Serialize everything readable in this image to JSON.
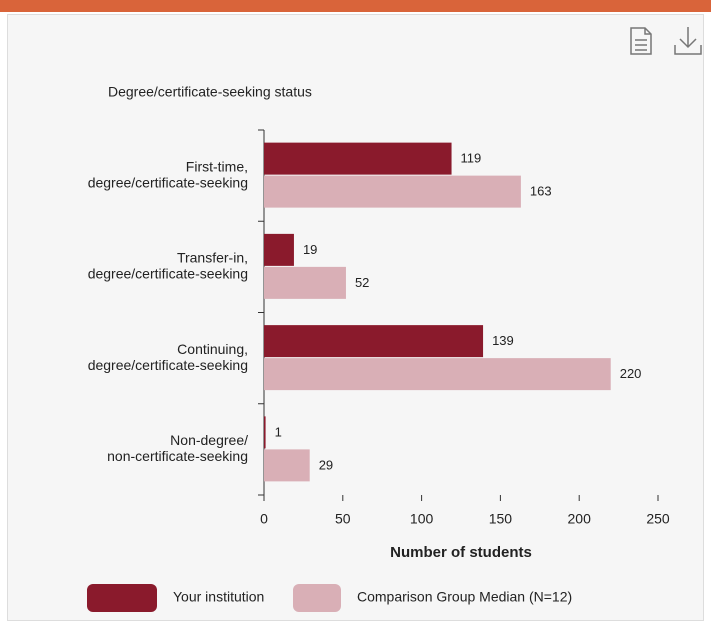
{
  "chart_data": {
    "type": "bar",
    "orientation": "horizontal",
    "title": "Degree/certificate-seeking status",
    "categories": [
      [
        "First-time,",
        "degree/certificate-seeking"
      ],
      [
        "Transfer-in,",
        "degree/certificate-seeking"
      ],
      [
        "Continuing,",
        "degree/certificate-seeking"
      ],
      [
        "Non-degree/",
        "non-certificate-seeking"
      ]
    ],
    "series": [
      {
        "name": "Your institution",
        "color": "#8a1a2c",
        "values": [
          119,
          19,
          139,
          1
        ]
      },
      {
        "name": "Comparison Group Median (N=12)",
        "color": "#d9afb6",
        "values": [
          163,
          52,
          220,
          29
        ]
      }
    ],
    "xlim": [
      0,
      250
    ],
    "xticks": [
      0,
      50,
      100,
      150,
      200,
      250
    ],
    "xlabel": "Number of students"
  }
}
